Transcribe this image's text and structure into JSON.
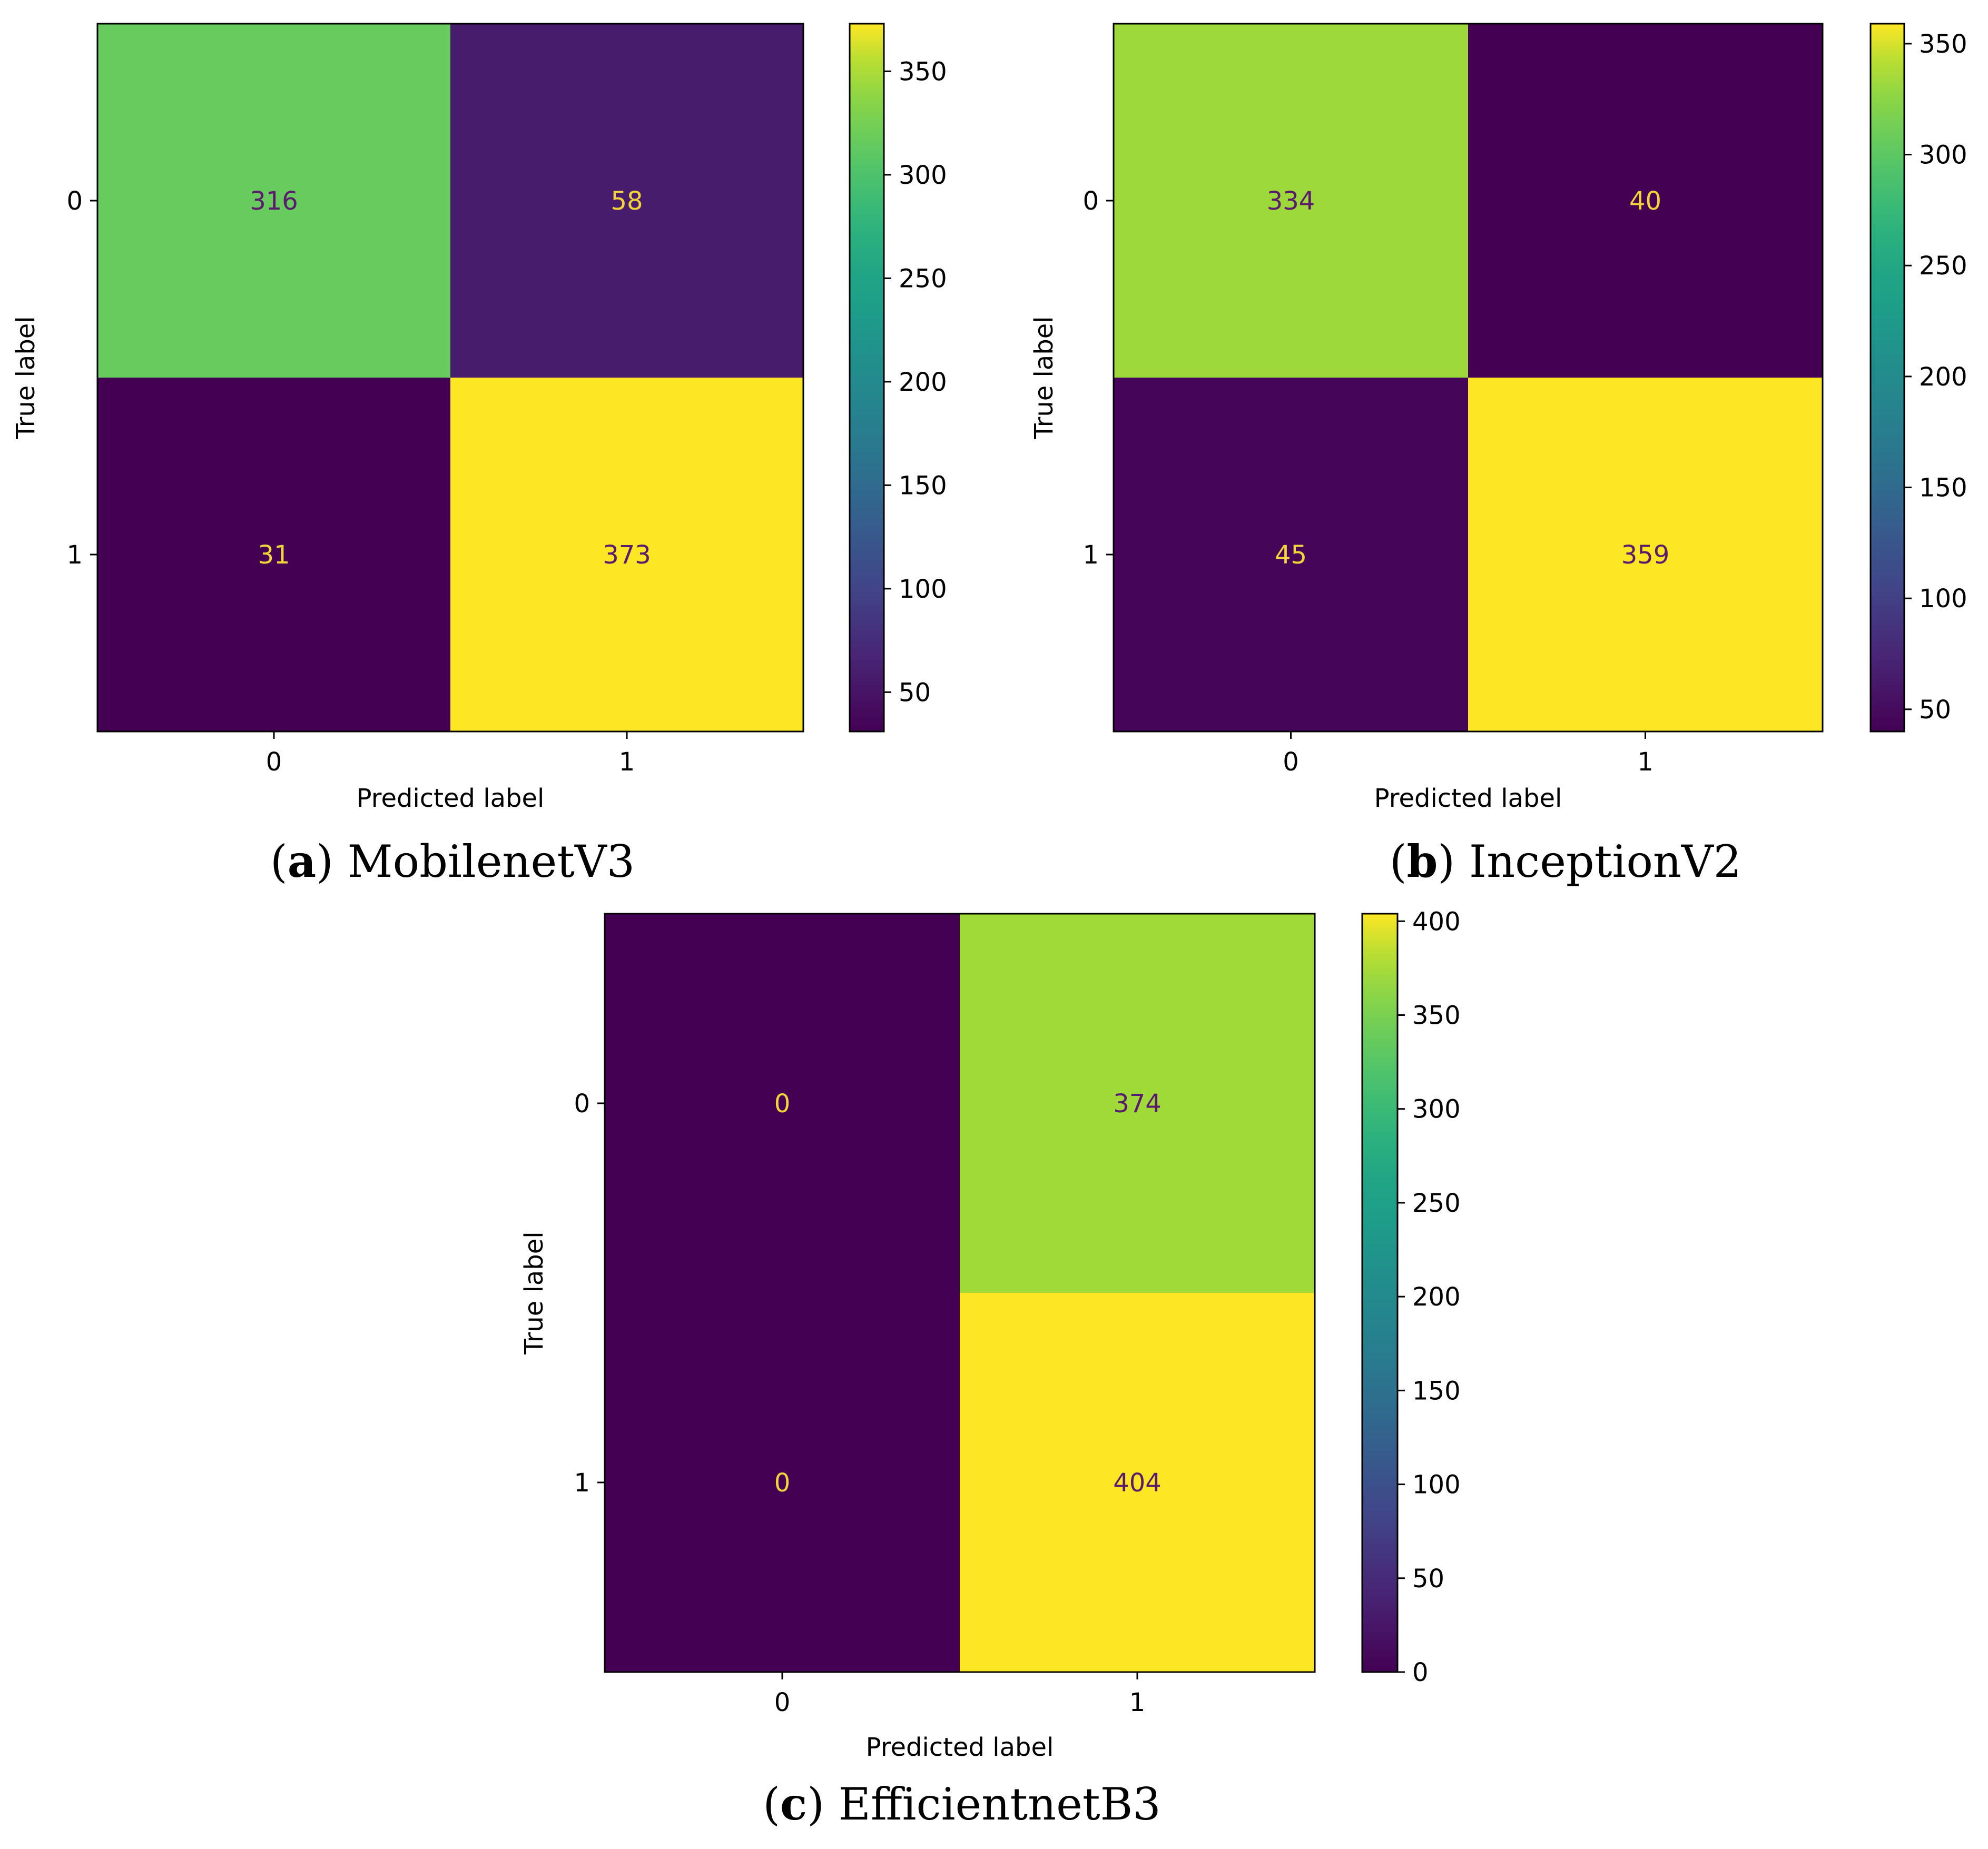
{
  "chart_data": [
    {
      "type": "heatmap",
      "title": "MobilenetV3",
      "caption_letter": "a",
      "xlabel": "Predicted label",
      "ylabel": "True label",
      "x_tick_labels": [
        "0",
        "1"
      ],
      "y_tick_labels": [
        "0",
        "1"
      ],
      "values": [
        [
          316,
          58
        ],
        [
          31,
          373
        ]
      ],
      "colormap": "viridis",
      "colorbar": {
        "min": 31,
        "max": 373,
        "ticks": [
          50,
          100,
          150,
          200,
          250,
          300,
          350
        ]
      }
    },
    {
      "type": "heatmap",
      "title": "InceptionV2",
      "caption_letter": "b",
      "xlabel": "Predicted label",
      "ylabel": "True label",
      "x_tick_labels": [
        "0",
        "1"
      ],
      "y_tick_labels": [
        "0",
        "1"
      ],
      "values": [
        [
          334,
          40
        ],
        [
          45,
          359
        ]
      ],
      "colormap": "viridis",
      "colorbar": {
        "min": 40,
        "max": 359,
        "ticks": [
          50,
          100,
          150,
          200,
          250,
          300,
          350
        ]
      }
    },
    {
      "type": "heatmap",
      "title": "EfficientnetB3",
      "caption_letter": "c",
      "xlabel": "Predicted label",
      "ylabel": "True label",
      "x_tick_labels": [
        "0",
        "1"
      ],
      "y_tick_labels": [
        "0",
        "1"
      ],
      "values": [
        [
          0,
          374
        ],
        [
          0,
          404
        ]
      ],
      "colormap": "viridis",
      "colorbar": {
        "min": 0,
        "max": 404,
        "ticks": [
          0,
          50,
          100,
          150,
          200,
          250,
          300,
          350,
          400
        ]
      }
    }
  ]
}
